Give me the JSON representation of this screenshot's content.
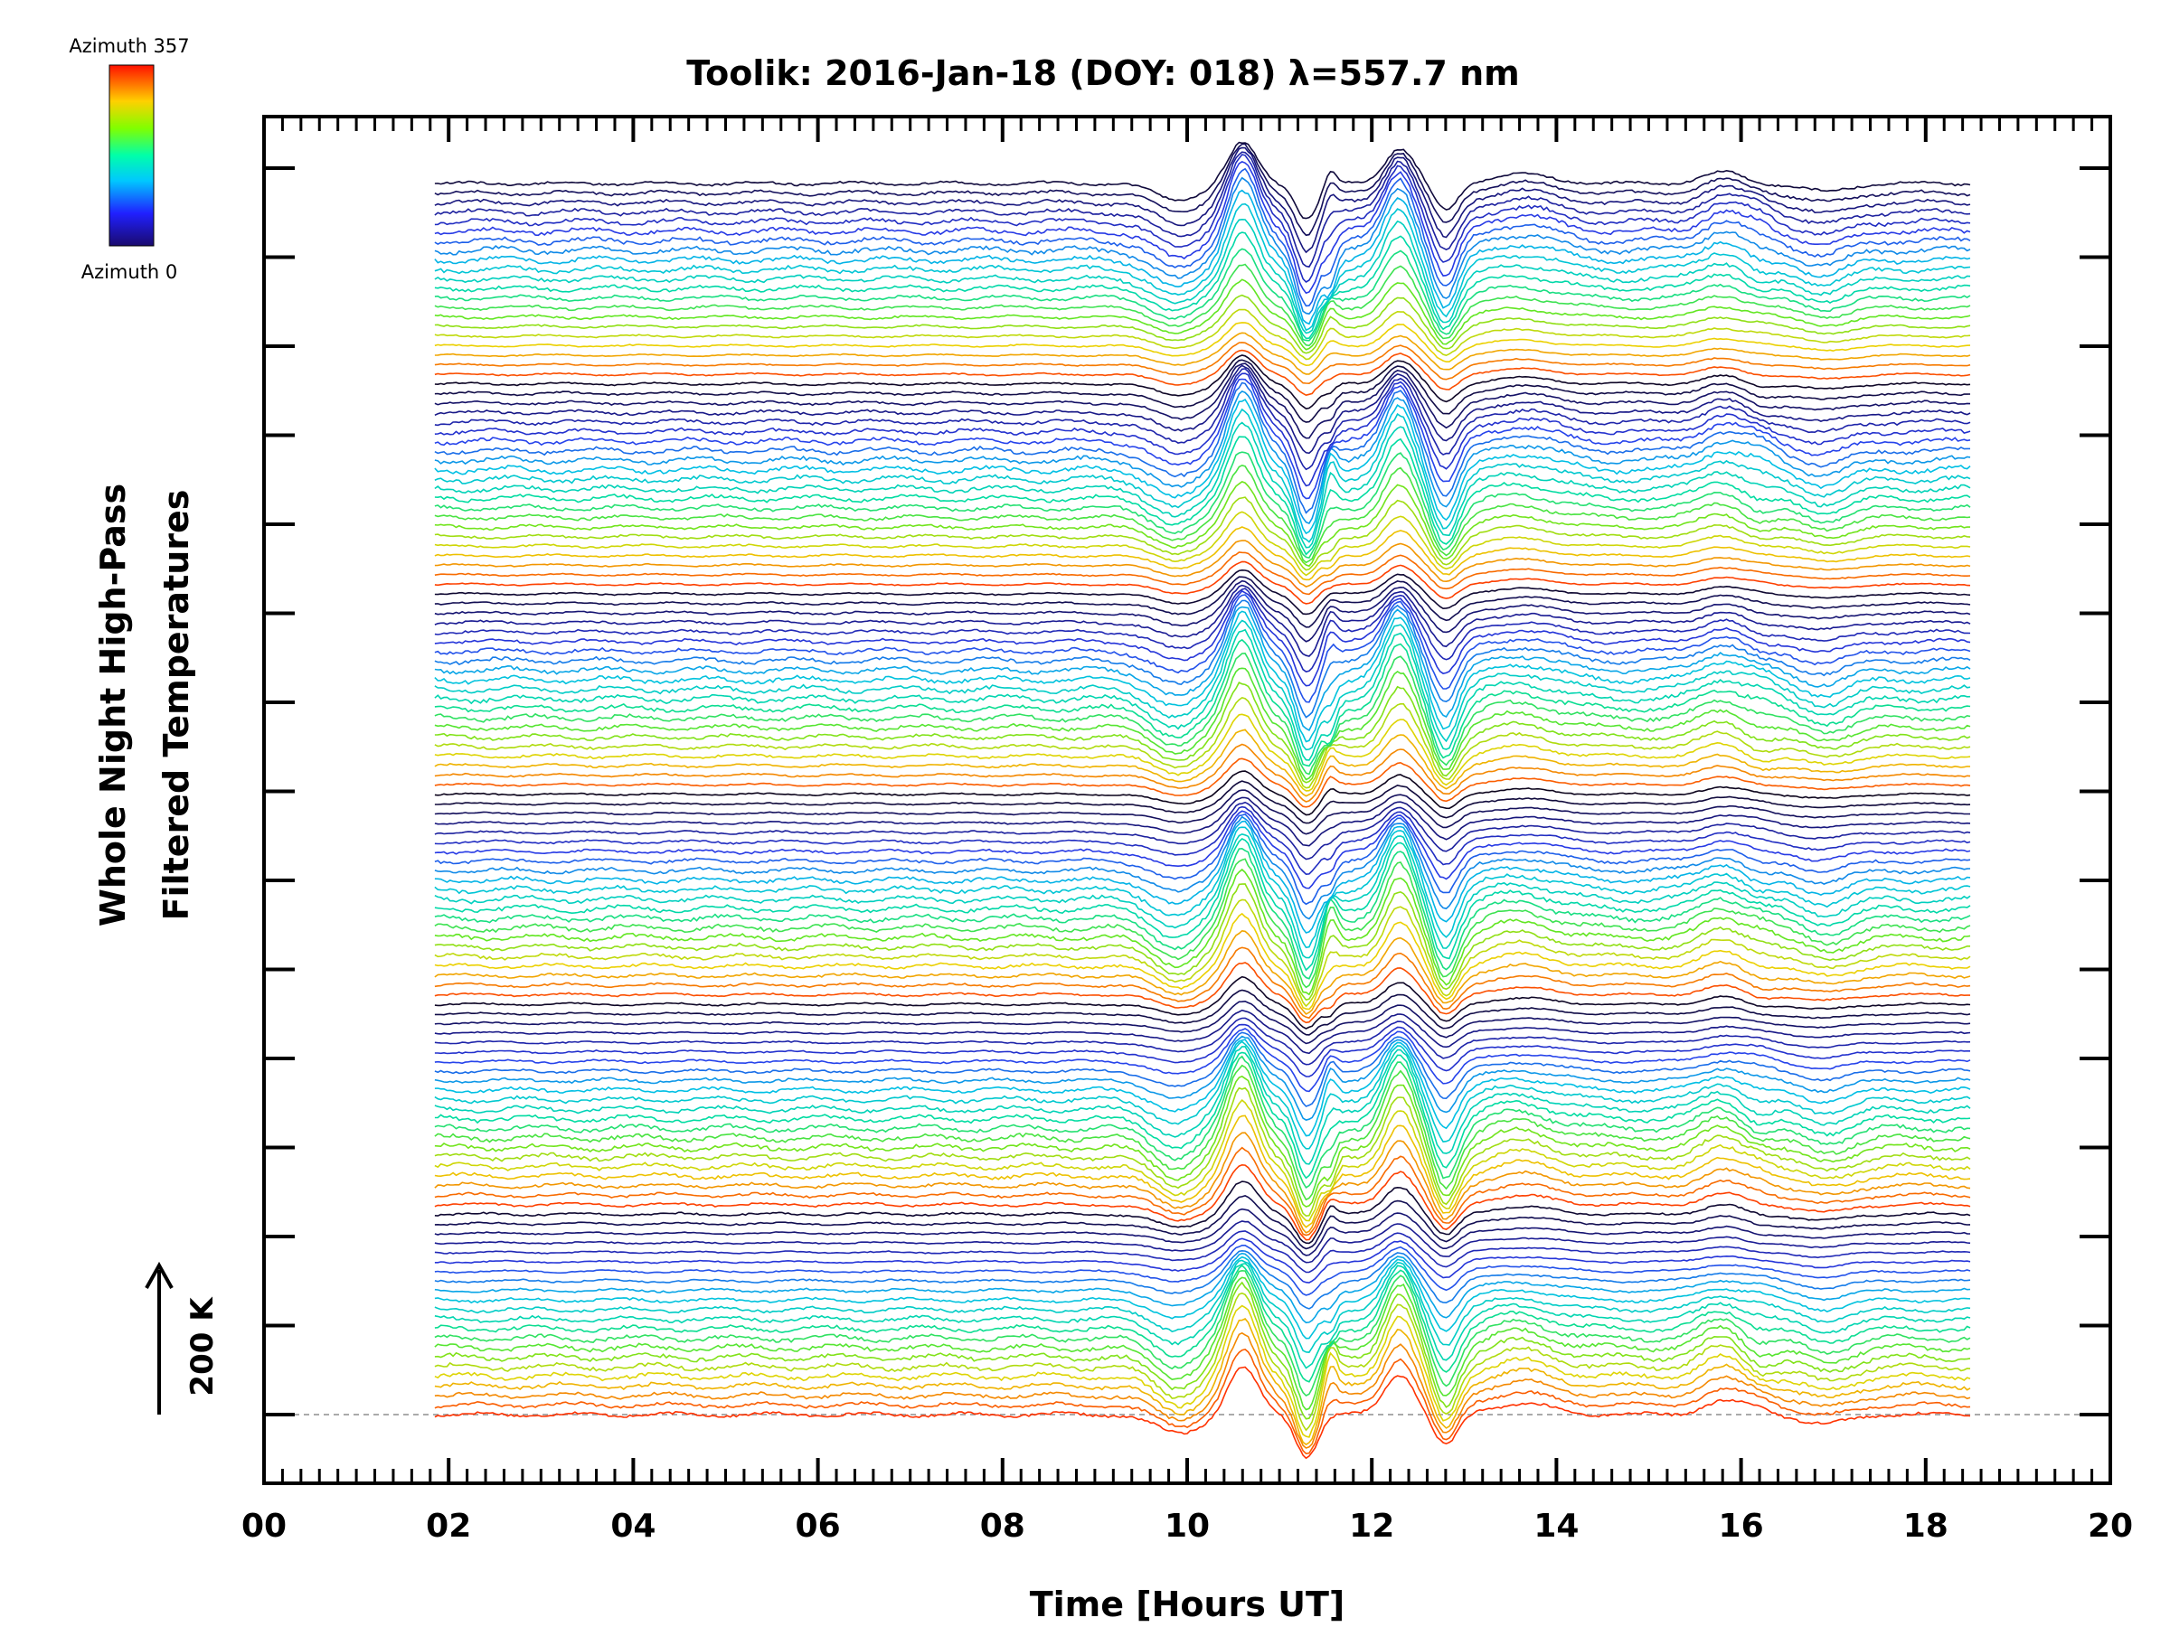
{
  "chart_data": {
    "type": "line",
    "title": "Toolik: 2016-Jan-18 (DOY: 018) λ=557.7 nm",
    "xlabel": "Time [Hours UT]",
    "ylabel": [
      "Whole Night High-Pass",
      "Filtered Temperatures"
    ],
    "xlim": [
      0,
      20
    ],
    "x_ticks": [
      "00",
      "02",
      "04",
      "06",
      "08",
      "10",
      "12",
      "14",
      "16",
      "18",
      "20"
    ],
    "data_x_range": [
      1.85,
      18.5
    ],
    "colorbar": {
      "label_top": "Azimuth 357",
      "label_bottom": "Azimuth 0",
      "colormap": "rainbow"
    },
    "scale_bar": {
      "label": "200 K",
      "value_k": 200
    },
    "baseline": {
      "style": "dashed",
      "color": "#aaaaaa"
    },
    "stack": {
      "line_count": 130,
      "groups": 6,
      "lines_per_group": 22
    },
    "colors": {
      "low_azimuth": "#0a0a6e",
      "mid_azimuth": "#00d0d0",
      "high_azimuth": "#ff3000"
    },
    "features": [
      {
        "x": 9.9,
        "kind": "dip"
      },
      {
        "x": 10.6,
        "kind": "peak"
      },
      {
        "x": 11.3,
        "kind": "dip"
      },
      {
        "x": 12.3,
        "kind": "peak"
      },
      {
        "x": 12.8,
        "kind": "dip"
      },
      {
        "x": 13.6,
        "kind": "peak"
      },
      {
        "x": 15.8,
        "kind": "peak"
      },
      {
        "x": 16.9,
        "kind": "dip"
      }
    ]
  }
}
